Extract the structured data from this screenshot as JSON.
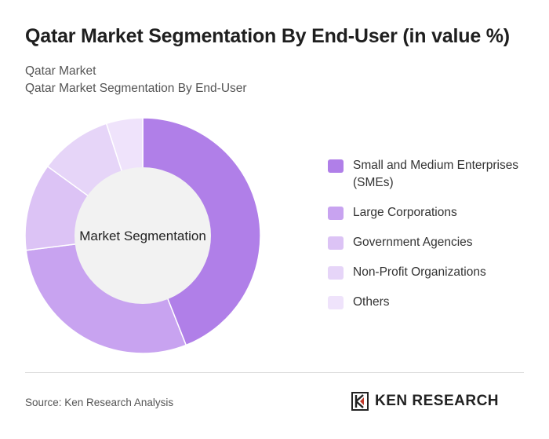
{
  "header": {
    "title": "Qatar Market Segmentation By End-User (in value %)",
    "subtitle_line1": "Qatar Market",
    "subtitle_line2": "Qatar Market Segmentation By End-User"
  },
  "chart_data": {
    "type": "pie",
    "variant": "donut",
    "center_label": "Market Segmentation",
    "legend_position": "right",
    "series": [
      {
        "name": "Small and Medium Enterprises (SMEs)",
        "value": 44,
        "color": "#b07fe8"
      },
      {
        "name": "Large Corporations",
        "value": 29,
        "color": "#c8a3f0"
      },
      {
        "name": "Government Agencies",
        "value": 12,
        "color": "#dcc3f5"
      },
      {
        "name": "Non-Profit Organizations",
        "value": 10,
        "color": "#e6d5f8"
      },
      {
        "name": "Others",
        "value": 5,
        "color": "#efe3fb"
      }
    ]
  },
  "footer": {
    "source": "Source: Ken Research Analysis",
    "brand": "KEN RESEARCH",
    "brand_color": "#222222",
    "brand_accent": "#c0392b"
  }
}
